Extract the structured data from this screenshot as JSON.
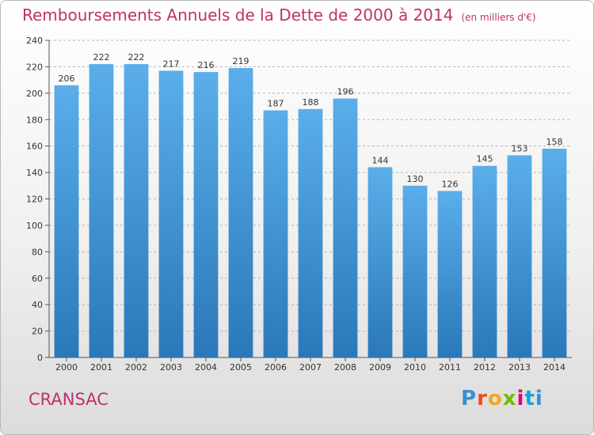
{
  "chart_data": {
    "type": "bar",
    "title": "Remboursements Annuels de la Dette de 2000 à 2014",
    "subtitle": "(en milliers d'€)",
    "categories": [
      "2000",
      "2001",
      "2002",
      "2003",
      "2004",
      "2005",
      "2006",
      "2007",
      "2008",
      "2009",
      "2010",
      "2011",
      "2012",
      "2013",
      "2014"
    ],
    "values": [
      206,
      222,
      222,
      217,
      216,
      219,
      187,
      188,
      196,
      144,
      130,
      126,
      145,
      153,
      158
    ],
    "ylim": [
      0,
      240
    ],
    "yticks": [
      0,
      20,
      40,
      60,
      80,
      100,
      120,
      140,
      160,
      180,
      200,
      220,
      240
    ],
    "grid": true,
    "bar_color": "#3d92d6",
    "title_color": "#c0306e"
  },
  "footer": {
    "commune": "CRANSAC",
    "logo_text": "Proxiti"
  }
}
